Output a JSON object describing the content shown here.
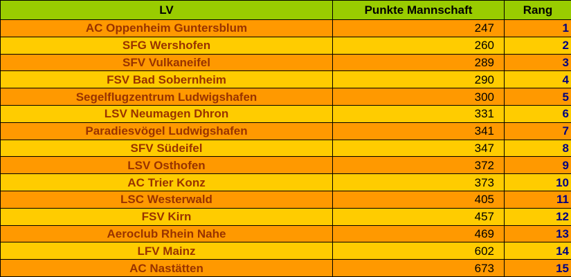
{
  "header": {
    "columns": [
      "LV",
      "Punkte Mannschaft",
      "Rang"
    ]
  },
  "table": {
    "rows": [
      [
        "AC Oppenheim Guntersblum",
        247,
        1
      ],
      [
        "SFG Wershofen",
        260,
        2
      ],
      [
        "SFV Vulkaneifel",
        289,
        3
      ],
      [
        "FSV Bad Sobernheim",
        290,
        4
      ],
      [
        "Segelflugzentrum Ludwigshafen",
        300,
        5
      ],
      [
        "LSV Neumagen Dhron",
        331,
        6
      ],
      [
        "Paradiesvögel Ludwigshafen",
        341,
        7
      ],
      [
        "SFV Südeifel",
        347,
        8
      ],
      [
        "LSV Osthofen",
        372,
        9
      ],
      [
        "AC Trier Konz",
        373,
        10
      ],
      [
        "LSC Westerwald",
        405,
        11
      ],
      [
        "FSV Kirn",
        457,
        12
      ],
      [
        "Aeroclub Rhein Nahe",
        469,
        13
      ],
      [
        "LFV Mainz",
        602,
        14
      ],
      [
        "AC Nastätten",
        673,
        15
      ]
    ]
  }
}
